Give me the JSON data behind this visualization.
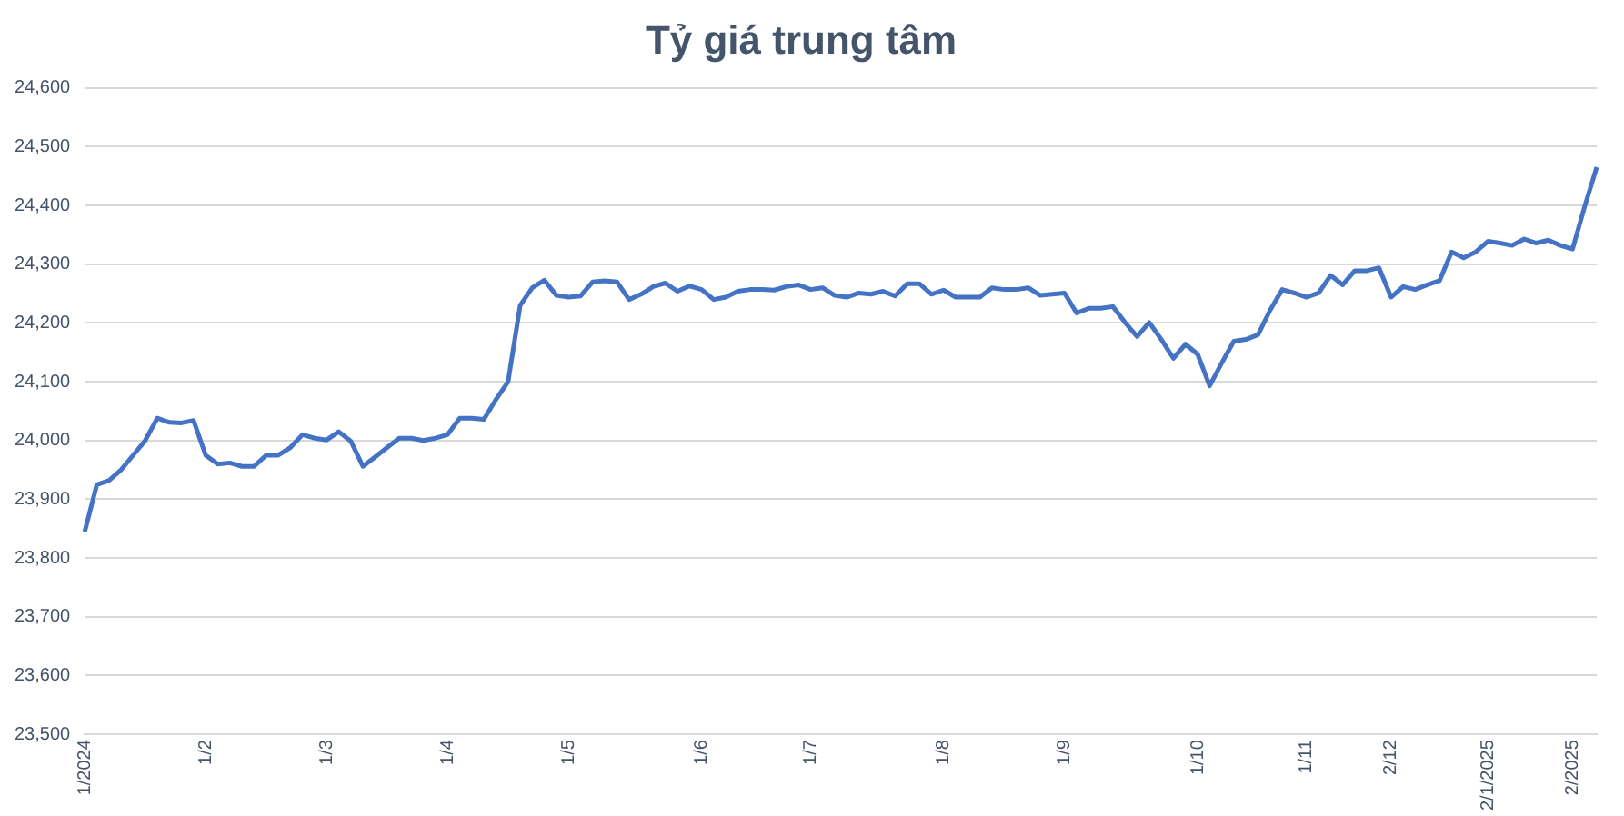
{
  "chart_data": {
    "type": "line",
    "title": "Tỷ giá trung tâm",
    "categories": [
      "1/2024",
      null,
      null,
      null,
      null,
      null,
      null,
      null,
      null,
      null,
      "1/2",
      null,
      null,
      null,
      null,
      null,
      null,
      null,
      null,
      null,
      "1/3",
      null,
      null,
      null,
      null,
      null,
      null,
      null,
      null,
      null,
      "1/4",
      null,
      null,
      null,
      null,
      null,
      null,
      null,
      null,
      null,
      "1/5",
      null,
      null,
      null,
      null,
      null,
      null,
      null,
      null,
      null,
      null,
      "1/6",
      null,
      null,
      null,
      null,
      null,
      null,
      null,
      null,
      "1/7",
      null,
      null,
      null,
      null,
      null,
      null,
      null,
      null,
      null,
      null,
      "1/8",
      null,
      null,
      null,
      null,
      null,
      null,
      null,
      null,
      null,
      "1/9",
      null,
      null,
      null,
      null,
      null,
      null,
      null,
      null,
      null,
      null,
      "1/10",
      null,
      null,
      null,
      null,
      null,
      null,
      null,
      null,
      "1/11",
      null,
      null,
      null,
      null,
      null,
      null,
      "2/12",
      null,
      null,
      null,
      null,
      null,
      null,
      null,
      "2/1/2025",
      null,
      null,
      null,
      null,
      null,
      null,
      "2/2025",
      null,
      null
    ],
    "series": [
      {
        "color": "#4472c4",
        "values": [
          23845,
          23925,
          23932,
          23950,
          23975,
          24000,
          24038,
          24031,
          24030,
          24034,
          23975,
          23960,
          23962,
          23956,
          23956,
          23975,
          23975,
          23988,
          24010,
          24004,
          24001,
          24015,
          23999,
          23956,
          23972,
          23988,
          24004,
          24004,
          24000,
          24004,
          24010,
          24038,
          24038,
          24036,
          24070,
          24100,
          24230,
          24260,
          24273,
          24247,
          24244,
          24246,
          24270,
          24272,
          24270,
          24240,
          24249,
          24262,
          24268,
          24254,
          24263,
          24257,
          24240,
          24244,
          24254,
          24257,
          24257,
          24256,
          24262,
          24265,
          24257,
          24260,
          24247,
          24244,
          24251,
          24249,
          24254,
          24246,
          24267,
          24267,
          24249,
          24256,
          24244,
          24244,
          24244,
          24260,
          24257,
          24257,
          24260,
          24247,
          24249,
          24251,
          24217,
          24225,
          24225,
          24228,
          24201,
          24177,
          24201,
          24172,
          24140,
          24164,
          24147,
          24093,
          24132,
          24169,
          24172,
          24180,
          24222,
          24257,
          24251,
          24244,
          24251,
          24281,
          24265,
          24289,
          24289,
          24294,
          24244,
          24262,
          24257,
          24265,
          24272,
          24321,
          24311,
          24321,
          24339,
          24336,
          24332,
          24343,
          24336,
          24341,
          24332,
          24326,
          24398,
          24465
        ]
      }
    ],
    "ylim": [
      23500,
      24600
    ],
    "yticks": [
      {
        "value": 23500,
        "label": "23,500"
      },
      {
        "value": 23600,
        "label": "23,600"
      },
      {
        "value": 23700,
        "label": "23,700"
      },
      {
        "value": 23800,
        "label": "23,800"
      },
      {
        "value": 23900,
        "label": "23,900"
      },
      {
        "value": 24000,
        "label": "24,000"
      },
      {
        "value": 24100,
        "label": "24,100"
      },
      {
        "value": 24200,
        "label": "24,200"
      },
      {
        "value": 24300,
        "label": "24,300"
      },
      {
        "value": 24400,
        "label": "24,400"
      },
      {
        "value": 24500,
        "label": "24,500"
      },
      {
        "value": 24600,
        "label": "24,600"
      }
    ],
    "grid": "y",
    "legend": false,
    "marker": "none",
    "line_style": "solid"
  }
}
